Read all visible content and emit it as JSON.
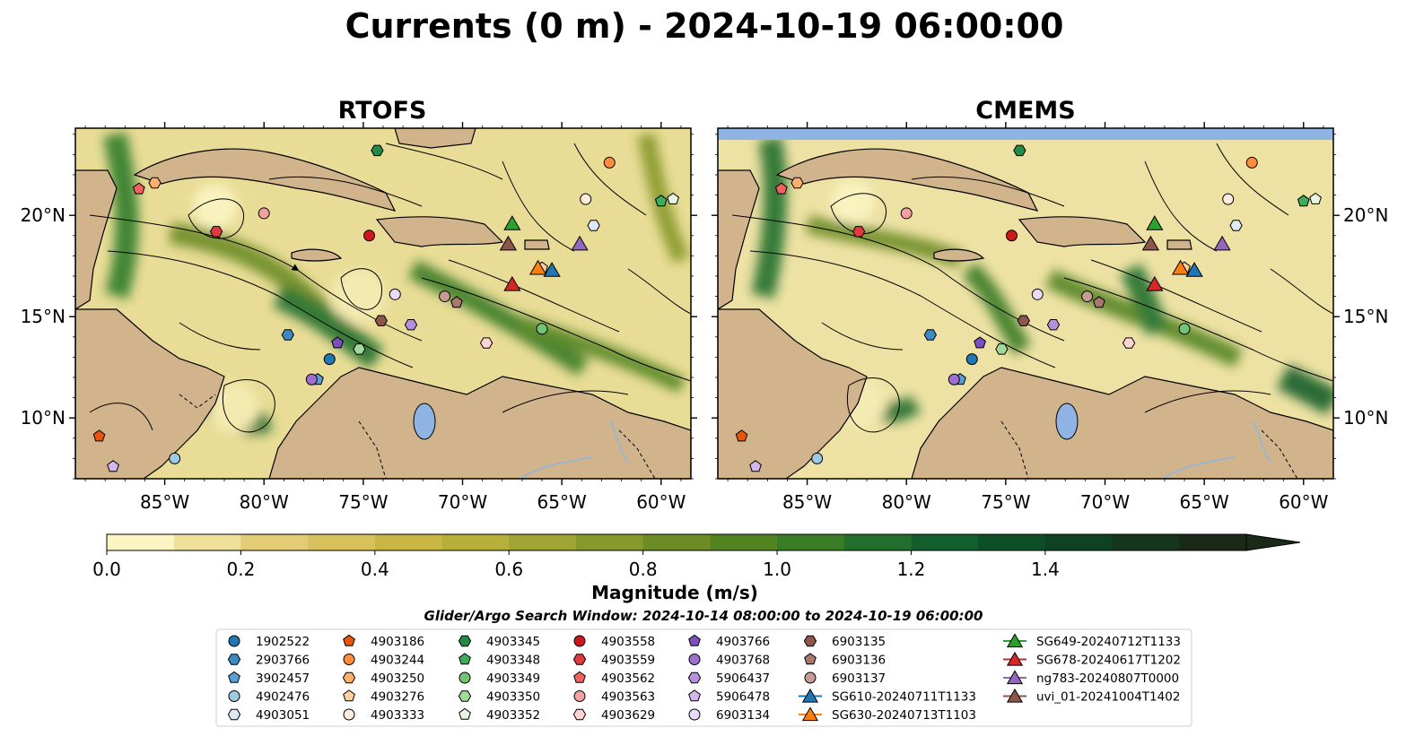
{
  "figure": {
    "title": "Currents (0 m) - 2024-10-19 06:00:00"
  },
  "panels": [
    {
      "id": "rtofs",
      "title": "RTOFS"
    },
    {
      "id": "cmems",
      "title": "CMEMS"
    }
  ],
  "map": {
    "lon_range": [
      -89.5,
      -58.5
    ],
    "lat_range": [
      7,
      24.3
    ],
    "lon_ticks": [
      {
        "value": -85,
        "label": "85°W"
      },
      {
        "value": -80,
        "label": "80°W"
      },
      {
        "value": -75,
        "label": "75°W"
      },
      {
        "value": -70,
        "label": "70°W"
      },
      {
        "value": -65,
        "label": "65°W"
      },
      {
        "value": -60,
        "label": "60°W"
      }
    ],
    "lat_ticks": [
      {
        "value": 20,
        "label": "20°N"
      },
      {
        "value": 15,
        "label": "15°N"
      },
      {
        "value": 10,
        "label": "10°N"
      }
    ],
    "colors": {
      "ocean_base": "#e8dc96",
      "land": "#d2b48c",
      "lake": "#8fb4e3",
      "river": "#9cb4cc",
      "cmems_top_band": "#8fb4e3"
    }
  },
  "colorbar": {
    "label": "Magnitude (m/s)",
    "min": 0.0,
    "max": 1.5,
    "extend": "max",
    "ticks": [
      {
        "value": 0.0,
        "label": "0.0"
      },
      {
        "value": 0.2,
        "label": "0.2"
      },
      {
        "value": 0.4,
        "label": "0.4"
      },
      {
        "value": 0.6,
        "label": "0.6"
      },
      {
        "value": 0.8,
        "label": "0.8"
      },
      {
        "value": 1.0,
        "label": "1.0"
      },
      {
        "value": 1.2,
        "label": "1.2"
      },
      {
        "value": 1.4,
        "label": "1.4"
      }
    ],
    "colors": [
      "#fbf5c3",
      "#efe09a",
      "#e2cd76",
      "#d7c15c",
      "#c9b745",
      "#b6b03b",
      "#9fa432",
      "#87992c",
      "#6d8c26",
      "#538422",
      "#3a7c26",
      "#226f2d",
      "#125e2c",
      "#0c4f27",
      "#0e4222",
      "#15361d",
      "#1b2a17"
    ]
  },
  "search_window": "Glider/Argo Search Window: 2024-10-14 08:00:00 to 2024-10-19 06:00:00",
  "legend": {
    "columns": [
      [
        {
          "label": "1902522",
          "marker": "circle",
          "color": "#1f77b4"
        },
        {
          "label": "2903766",
          "marker": "hexagon",
          "color": "#3b8ac4"
        },
        {
          "label": "3902457",
          "marker": "pentagon",
          "color": "#5a9fd4"
        },
        {
          "label": "4902476",
          "marker": "circle",
          "color": "#9ecae1"
        },
        {
          "label": "4903051",
          "marker": "hexagon",
          "color": "#deebf7"
        }
      ],
      [
        {
          "label": "4903186",
          "marker": "pentagon",
          "color": "#e6550d"
        },
        {
          "label": "4903244",
          "marker": "circle",
          "color": "#fd8d3c"
        },
        {
          "label": "4903250",
          "marker": "hexagon",
          "color": "#fdae6b"
        },
        {
          "label": "4903276",
          "marker": "pentagon",
          "color": "#fdd0a2"
        },
        {
          "label": "4903333",
          "marker": "circle",
          "color": "#feedde"
        }
      ],
      [
        {
          "label": "4903345",
          "marker": "hexagon",
          "color": "#238b45"
        },
        {
          "label": "4903348",
          "marker": "pentagon",
          "color": "#41ab5d"
        },
        {
          "label": "4903349",
          "marker": "circle",
          "color": "#74c476"
        },
        {
          "label": "4903350",
          "marker": "hexagon",
          "color": "#a1d99b"
        },
        {
          "label": "4903352",
          "marker": "pentagon",
          "color": "#e5f5e0"
        }
      ],
      [
        {
          "label": "4903558",
          "marker": "circle",
          "color": "#cb181d"
        },
        {
          "label": "4903559",
          "marker": "hexagon",
          "color": "#e03a3e"
        },
        {
          "label": "4903562",
          "marker": "pentagon",
          "color": "#ef6060"
        },
        {
          "label": "4903563",
          "marker": "circle",
          "color": "#f4a0a0"
        },
        {
          "label": "4903629",
          "marker": "hexagon",
          "color": "#fcd4d4"
        }
      ],
      [
        {
          "label": "4903766",
          "marker": "pentagon",
          "color": "#7b4fbe"
        },
        {
          "label": "4903768",
          "marker": "circle",
          "color": "#9e6fcf"
        },
        {
          "label": "5906437",
          "marker": "hexagon",
          "color": "#b690dd"
        },
        {
          "label": "5906478",
          "marker": "pentagon",
          "color": "#d2b8ec"
        },
        {
          "label": "6903134",
          "marker": "circle",
          "color": "#ead9f7"
        }
      ],
      [
        {
          "label": "6903135",
          "marker": "hexagon",
          "color": "#8c564b"
        },
        {
          "label": "6903136",
          "marker": "pentagon",
          "color": "#a9776b"
        },
        {
          "label": "6903137",
          "marker": "circle",
          "color": "#c49c94"
        },
        {
          "label": "SG610-20240711T1133",
          "marker": "triangle",
          "color": "#1f77b4"
        },
        {
          "label": "SG630-20240713T1103",
          "marker": "triangle",
          "color": "#ff7f0e"
        }
      ],
      [
        {
          "label": "SG649-20240712T1133",
          "marker": "triangle",
          "color": "#2ca02c"
        },
        {
          "label": "SG678-20240617T1202",
          "marker": "triangle",
          "color": "#d62728"
        },
        {
          "label": "ng783-20240807T0000",
          "marker": "triangle",
          "color": "#9467bd"
        },
        {
          "label": "uvi_01-20241004T1402",
          "marker": "triangle",
          "color": "#8c564b"
        }
      ]
    ]
  },
  "observations": [
    {
      "id": "1902522",
      "lon": -76.7,
      "lat": 12.9
    },
    {
      "id": "2903766",
      "lon": -78.8,
      "lat": 14.1
    },
    {
      "id": "3902457",
      "lon": -77.3,
      "lat": 11.9
    },
    {
      "id": "4902476",
      "lon": -84.5,
      "lat": 8.0
    },
    {
      "id": "4903051",
      "lon": -63.4,
      "lat": 19.5
    },
    {
      "id": "4903186",
      "lon": -88.3,
      "lat": 9.1
    },
    {
      "id": "4903244",
      "lon": -62.6,
      "lat": 22.6
    },
    {
      "id": "4903250",
      "lon": -85.5,
      "lat": 21.6
    },
    {
      "id": "4903276",
      "lon": -66.0,
      "lat": 17.4
    },
    {
      "id": "4903333",
      "lon": -63.8,
      "lat": 20.8
    },
    {
      "id": "4903345",
      "lon": -74.3,
      "lat": 23.2
    },
    {
      "id": "4903348",
      "lon": -60.0,
      "lat": 20.7
    },
    {
      "id": "4903349",
      "lon": -66.0,
      "lat": 14.4
    },
    {
      "id": "4903350",
      "lon": -75.2,
      "lat": 13.4
    },
    {
      "id": "4903352",
      "lon": -59.4,
      "lat": 20.8
    },
    {
      "id": "4903558",
      "lon": -74.7,
      "lat": 19.0
    },
    {
      "id": "4903559",
      "lon": -82.4,
      "lat": 19.2
    },
    {
      "id": "4903562",
      "lon": -86.3,
      "lat": 21.3
    },
    {
      "id": "4903563",
      "lon": -80.0,
      "lat": 20.1
    },
    {
      "id": "4903629",
      "lon": -68.8,
      "lat": 13.7
    },
    {
      "id": "4903766",
      "lon": -76.3,
      "lat": 13.7
    },
    {
      "id": "4903768",
      "lon": -77.6,
      "lat": 11.9
    },
    {
      "id": "5906437",
      "lon": -72.6,
      "lat": 14.6
    },
    {
      "id": "5906478",
      "lon": -87.6,
      "lat": 7.6
    },
    {
      "id": "6903134",
      "lon": -73.4,
      "lat": 16.1
    },
    {
      "id": "6903135",
      "lon": -74.1,
      "lat": 14.8
    },
    {
      "id": "6903136",
      "lon": -70.3,
      "lat": 15.7
    },
    {
      "id": "6903137",
      "lon": -70.9,
      "lat": 16.0
    },
    {
      "id": "SG610-20240711T1133",
      "lon": -65.5,
      "lat": 17.3
    },
    {
      "id": "SG630-20240713T1103",
      "lon": -66.2,
      "lat": 17.4
    },
    {
      "id": "SG649-20240712T1133",
      "lon": -67.5,
      "lat": 19.6
    },
    {
      "id": "SG678-20240617T1202",
      "lon": -67.5,
      "lat": 16.6
    },
    {
      "id": "ng783-20240807T0000",
      "lon": -64.1,
      "lat": 18.6
    },
    {
      "id": "uvi_01-20241004T1402",
      "lon": -67.7,
      "lat": 18.6
    }
  ]
}
